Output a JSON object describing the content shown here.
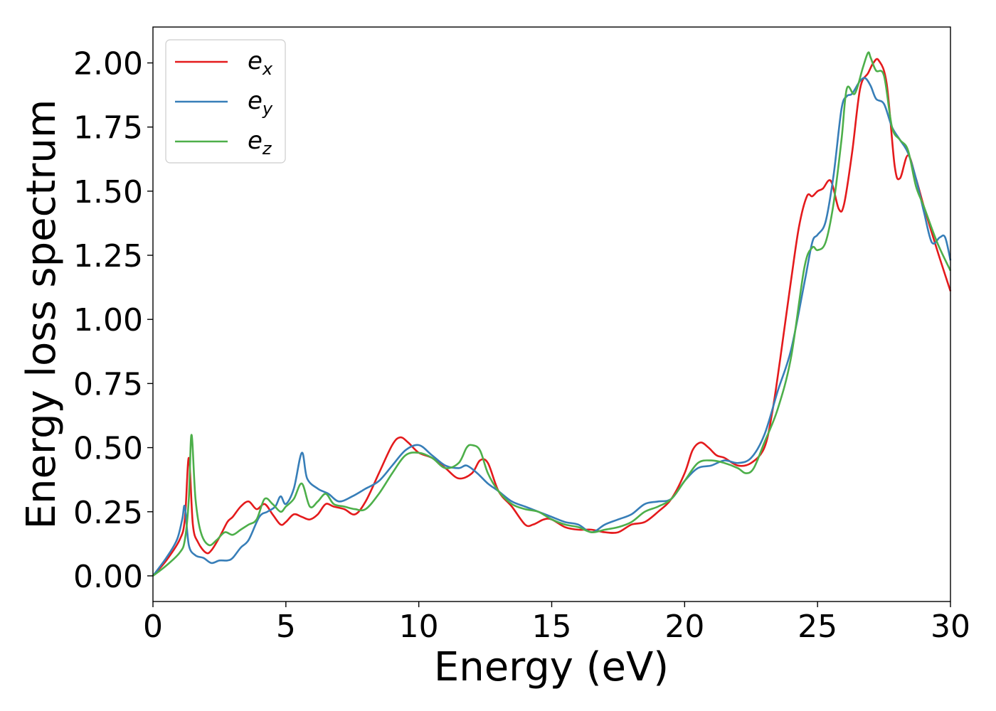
{
  "chart_data": {
    "type": "line",
    "xlabel": "Energy (eV)",
    "ylabel": "Energy loss spectrum",
    "xlim": [
      0,
      30
    ],
    "ylim": [
      -0.1,
      2.14
    ],
    "xticks": [
      "0",
      "5",
      "10",
      "15",
      "20",
      "25",
      "30"
    ],
    "yticks": [
      "0.00",
      "0.25",
      "0.50",
      "0.75",
      "1.00",
      "1.25",
      "1.50",
      "1.75",
      "2.00"
    ],
    "grid": false,
    "legend_position": "top-left",
    "series": [
      {
        "name": "e",
        "sub": "x",
        "color": "#e41a1c",
        "x": [
          0,
          0.5,
          1.0,
          1.2,
          1.35,
          1.5,
          1.7,
          2.0,
          2.2,
          2.5,
          2.8,
          3.0,
          3.3,
          3.6,
          3.9,
          4.2,
          4.5,
          4.8,
          5.0,
          5.3,
          5.6,
          5.9,
          6.2,
          6.5,
          6.8,
          7.2,
          7.6,
          8.0,
          8.5,
          9.0,
          9.3,
          9.6,
          10.0,
          10.5,
          11.0,
          11.5,
          12.0,
          12.3,
          12.6,
          13.0,
          13.5,
          14.0,
          14.3,
          14.7,
          15.0,
          15.5,
          16.0,
          16.5,
          17.0,
          17.5,
          18.0,
          18.5,
          19.0,
          19.5,
          20.0,
          20.3,
          20.6,
          20.9,
          21.2,
          21.5,
          22.0,
          22.5,
          23.0,
          23.3,
          23.6,
          24.0,
          24.3,
          24.6,
          24.8,
          25.0,
          25.2,
          25.5,
          25.8,
          26.0,
          26.3,
          26.6,
          26.9,
          27.1,
          27.3,
          27.6,
          27.9,
          28.1,
          28.4,
          28.7,
          29.0,
          29.5,
          30.0
        ],
        "y": [
          0.0,
          0.06,
          0.14,
          0.22,
          0.46,
          0.2,
          0.13,
          0.09,
          0.1,
          0.15,
          0.21,
          0.23,
          0.27,
          0.29,
          0.26,
          0.28,
          0.24,
          0.2,
          0.21,
          0.24,
          0.23,
          0.22,
          0.24,
          0.28,
          0.27,
          0.26,
          0.24,
          0.29,
          0.4,
          0.51,
          0.54,
          0.52,
          0.48,
          0.46,
          0.42,
          0.38,
          0.4,
          0.45,
          0.44,
          0.33,
          0.27,
          0.2,
          0.2,
          0.22,
          0.22,
          0.19,
          0.18,
          0.18,
          0.17,
          0.17,
          0.2,
          0.21,
          0.25,
          0.3,
          0.4,
          0.49,
          0.52,
          0.5,
          0.47,
          0.46,
          0.43,
          0.44,
          0.5,
          0.64,
          0.85,
          1.15,
          1.36,
          1.48,
          1.48,
          1.5,
          1.51,
          1.54,
          1.43,
          1.45,
          1.65,
          1.9,
          1.96,
          2.0,
          2.01,
          1.92,
          1.6,
          1.55,
          1.64,
          1.55,
          1.44,
          1.27,
          1.11
        ]
      },
      {
        "name": "e",
        "sub": "y",
        "color": "#377eb8",
        "x": [
          0,
          0.5,
          0.9,
          1.1,
          1.2,
          1.35,
          1.6,
          1.9,
          2.2,
          2.5,
          2.8,
          3.0,
          3.3,
          3.6,
          4.0,
          4.3,
          4.6,
          4.8,
          5.0,
          5.3,
          5.6,
          5.8,
          6.2,
          6.6,
          7.0,
          7.5,
          8.0,
          8.5,
          9.0,
          9.5,
          10.0,
          10.5,
          11.0,
          11.5,
          11.8,
          12.2,
          12.6,
          13.0,
          13.5,
          14.0,
          14.5,
          15.0,
          15.5,
          16.0,
          16.5,
          17.0,
          17.5,
          18.0,
          18.5,
          19.0,
          19.5,
          20.0,
          20.5,
          21.0,
          21.5,
          22.0,
          22.5,
          23.0,
          23.5,
          24.0,
          24.5,
          24.8,
          25.0,
          25.3,
          25.6,
          25.9,
          26.1,
          26.3,
          26.6,
          26.8,
          27.0,
          27.2,
          27.5,
          27.8,
          28.1,
          28.4,
          28.7,
          29.0,
          29.3,
          29.6,
          29.8,
          30.0
        ],
        "y": [
          0.0,
          0.07,
          0.14,
          0.22,
          0.27,
          0.12,
          0.08,
          0.07,
          0.05,
          0.06,
          0.06,
          0.07,
          0.11,
          0.14,
          0.23,
          0.25,
          0.27,
          0.31,
          0.28,
          0.34,
          0.48,
          0.38,
          0.34,
          0.32,
          0.29,
          0.31,
          0.34,
          0.37,
          0.43,
          0.49,
          0.51,
          0.47,
          0.43,
          0.42,
          0.43,
          0.4,
          0.36,
          0.33,
          0.29,
          0.27,
          0.25,
          0.23,
          0.21,
          0.2,
          0.17,
          0.2,
          0.22,
          0.24,
          0.28,
          0.29,
          0.3,
          0.37,
          0.42,
          0.43,
          0.45,
          0.44,
          0.46,
          0.55,
          0.72,
          0.88,
          1.14,
          1.3,
          1.33,
          1.38,
          1.56,
          1.82,
          1.87,
          1.88,
          1.93,
          1.94,
          1.91,
          1.86,
          1.84,
          1.75,
          1.7,
          1.65,
          1.55,
          1.42,
          1.3,
          1.32,
          1.32,
          1.23
        ]
      },
      {
        "name": "e",
        "sub": "z",
        "color": "#4daf4a",
        "x": [
          0,
          0.5,
          1.0,
          1.2,
          1.35,
          1.45,
          1.6,
          1.8,
          2.1,
          2.4,
          2.7,
          3.0,
          3.3,
          3.6,
          3.9,
          4.2,
          4.5,
          4.8,
          5.0,
          5.3,
          5.6,
          5.9,
          6.2,
          6.5,
          6.8,
          7.2,
          7.6,
          8.0,
          8.5,
          9.0,
          9.5,
          10.0,
          10.5,
          11.0,
          11.5,
          11.8,
          12.0,
          12.3,
          12.6,
          13.0,
          13.5,
          14.0,
          14.5,
          15.0,
          15.5,
          16.0,
          16.5,
          17.0,
          17.5,
          18.0,
          18.5,
          19.0,
          19.5,
          20.0,
          20.5,
          21.0,
          21.5,
          22.0,
          22.3,
          22.6,
          23.0,
          23.5,
          24.0,
          24.5,
          24.8,
          25.0,
          25.3,
          25.6,
          25.9,
          26.1,
          26.4,
          26.7,
          26.9,
          27.0,
          27.2,
          27.5,
          27.8,
          28.1,
          28.4,
          28.7,
          29.0,
          29.5,
          30.0
        ],
        "y": [
          0.0,
          0.04,
          0.09,
          0.14,
          0.3,
          0.55,
          0.3,
          0.17,
          0.12,
          0.14,
          0.17,
          0.16,
          0.18,
          0.2,
          0.22,
          0.3,
          0.28,
          0.25,
          0.27,
          0.3,
          0.36,
          0.27,
          0.29,
          0.32,
          0.28,
          0.27,
          0.26,
          0.26,
          0.32,
          0.4,
          0.47,
          0.48,
          0.46,
          0.42,
          0.44,
          0.5,
          0.51,
          0.49,
          0.4,
          0.33,
          0.28,
          0.26,
          0.25,
          0.22,
          0.2,
          0.19,
          0.17,
          0.18,
          0.19,
          0.21,
          0.25,
          0.27,
          0.3,
          0.37,
          0.44,
          0.45,
          0.44,
          0.42,
          0.4,
          0.42,
          0.52,
          0.65,
          0.85,
          1.2,
          1.28,
          1.27,
          1.3,
          1.45,
          1.7,
          1.9,
          1.88,
          1.98,
          2.04,
          2.02,
          1.97,
          1.95,
          1.75,
          1.7,
          1.66,
          1.52,
          1.44,
          1.3,
          1.19
        ]
      }
    ]
  }
}
